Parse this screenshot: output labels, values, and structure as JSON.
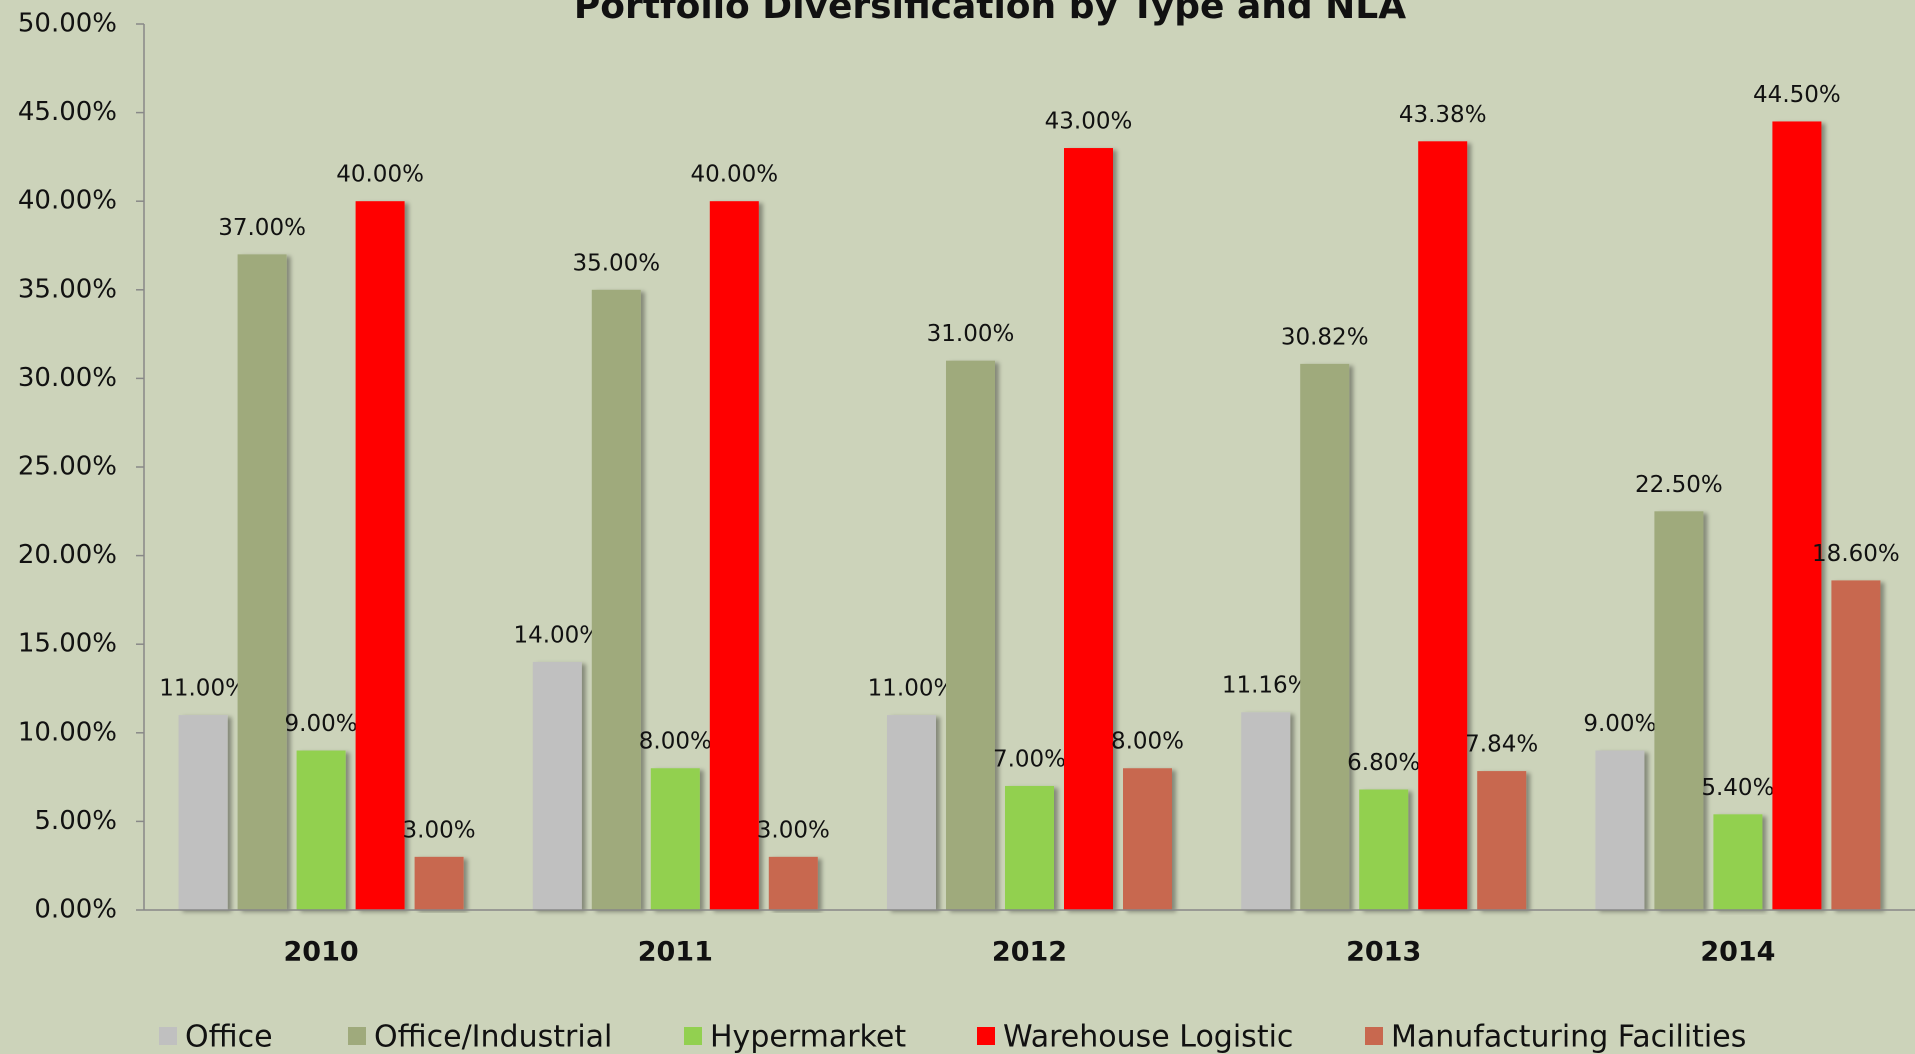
{
  "chart_data": {
    "type": "bar",
    "title": "Portfolio Diversification by Type and NLA",
    "categories": [
      "2010",
      "2011",
      "2012",
      "2013",
      "2014"
    ],
    "series": [
      {
        "name": "Office",
        "color": "#c0c0c0",
        "values": [
          11,
          14,
          11,
          11.16,
          9
        ],
        "value_labels": [
          "11.00%",
          "14.00%",
          "11.00%",
          "11.16%",
          "9.00%"
        ]
      },
      {
        "name": "Office/Industrial",
        "color": "#9faa7c",
        "values": [
          37,
          35,
          31,
          30.82,
          22.5
        ],
        "value_labels": [
          "37.00%",
          "35.00%",
          "31.00%",
          "30.82%",
          "22.50%"
        ]
      },
      {
        "name": "Hypermarket",
        "color": "#92d050",
        "values": [
          9,
          8,
          7,
          6.8,
          5.4
        ],
        "value_labels": [
          "9.00%",
          "8.00%",
          "7.00%",
          "6.80%",
          "5.40%"
        ]
      },
      {
        "name": "Warehouse Logistic",
        "color": "#ff0000",
        "values": [
          40,
          40,
          43,
          43.38,
          44.5
        ],
        "value_labels": [
          "40.00%",
          "40.00%",
          "43.00%",
          "43.38%",
          "44.50%"
        ]
      },
      {
        "name": "Manufacturing Facilities",
        "color": "#c8684f",
        "values": [
          3,
          3,
          8,
          7.84,
          18.6
        ],
        "value_labels": [
          "3.00%",
          "3.00%",
          "8.00%",
          "7.84%",
          "18.60%"
        ]
      }
    ],
    "ylim": [
      0,
      50
    ],
    "yticks": [
      {
        "value": 0,
        "label": "0.00%"
      },
      {
        "value": 5,
        "label": "5.00%"
      },
      {
        "value": 10,
        "label": "10.00%"
      },
      {
        "value": 15,
        "label": "15.00%"
      },
      {
        "value": 20,
        "label": "20.00%"
      },
      {
        "value": 25,
        "label": "25.00%"
      },
      {
        "value": 30,
        "label": "30.00%"
      },
      {
        "value": 35,
        "label": "35.00%"
      },
      {
        "value": 40,
        "label": "40.00%"
      },
      {
        "value": 45,
        "label": "45.00%"
      },
      {
        "value": 50,
        "label": "50.00%"
      }
    ],
    "legend": "bottom"
  }
}
